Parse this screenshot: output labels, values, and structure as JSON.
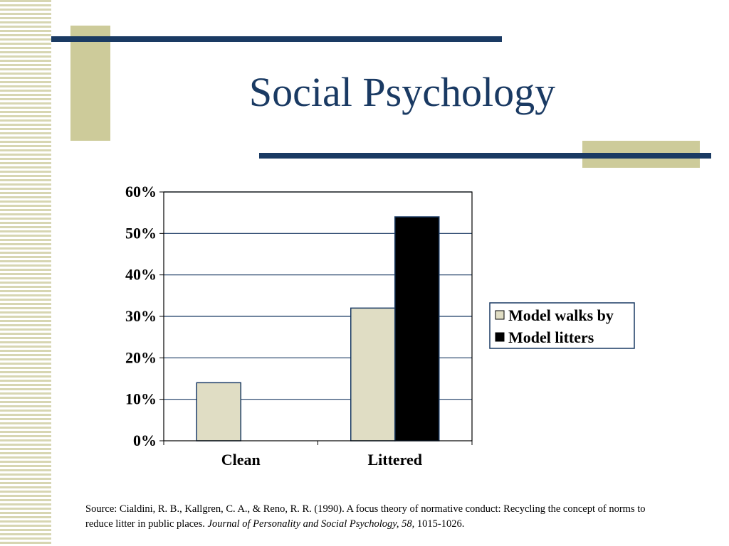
{
  "slide": {
    "title": "Social Psychology",
    "source": {
      "prefix": "Source: Cialdini, R. B., Kallgren, C. A., & Reno, R. R. (1990). A focus theory of normative conduct: Recycling the concept of norms to reduce litter in public places. ",
      "journal": "Journal of Personality and Social Psychology, 58,",
      "pages": " 1015-1026."
    }
  },
  "colors": {
    "title": "#1a3a63",
    "accent_line": "#1a3a63",
    "accent_block": "#cdcb9a",
    "series_walks_by": "#e0ddc4",
    "series_litters": "#000000"
  },
  "chart_data": {
    "type": "bar",
    "categories": [
      "Clean",
      "Littered"
    ],
    "series": [
      {
        "name": "Model walks by",
        "values": [
          14,
          32
        ]
      },
      {
        "name": "Model litters",
        "values": [
          null,
          54
        ]
      }
    ],
    "ylim": [
      0,
      60
    ],
    "yticks": [
      "0%",
      "10%",
      "20%",
      "30%",
      "40%",
      "50%",
      "60%"
    ],
    "ytick_values": [
      0,
      10,
      20,
      30,
      40,
      50,
      60
    ],
    "grid": true,
    "legend_position": "right"
  }
}
